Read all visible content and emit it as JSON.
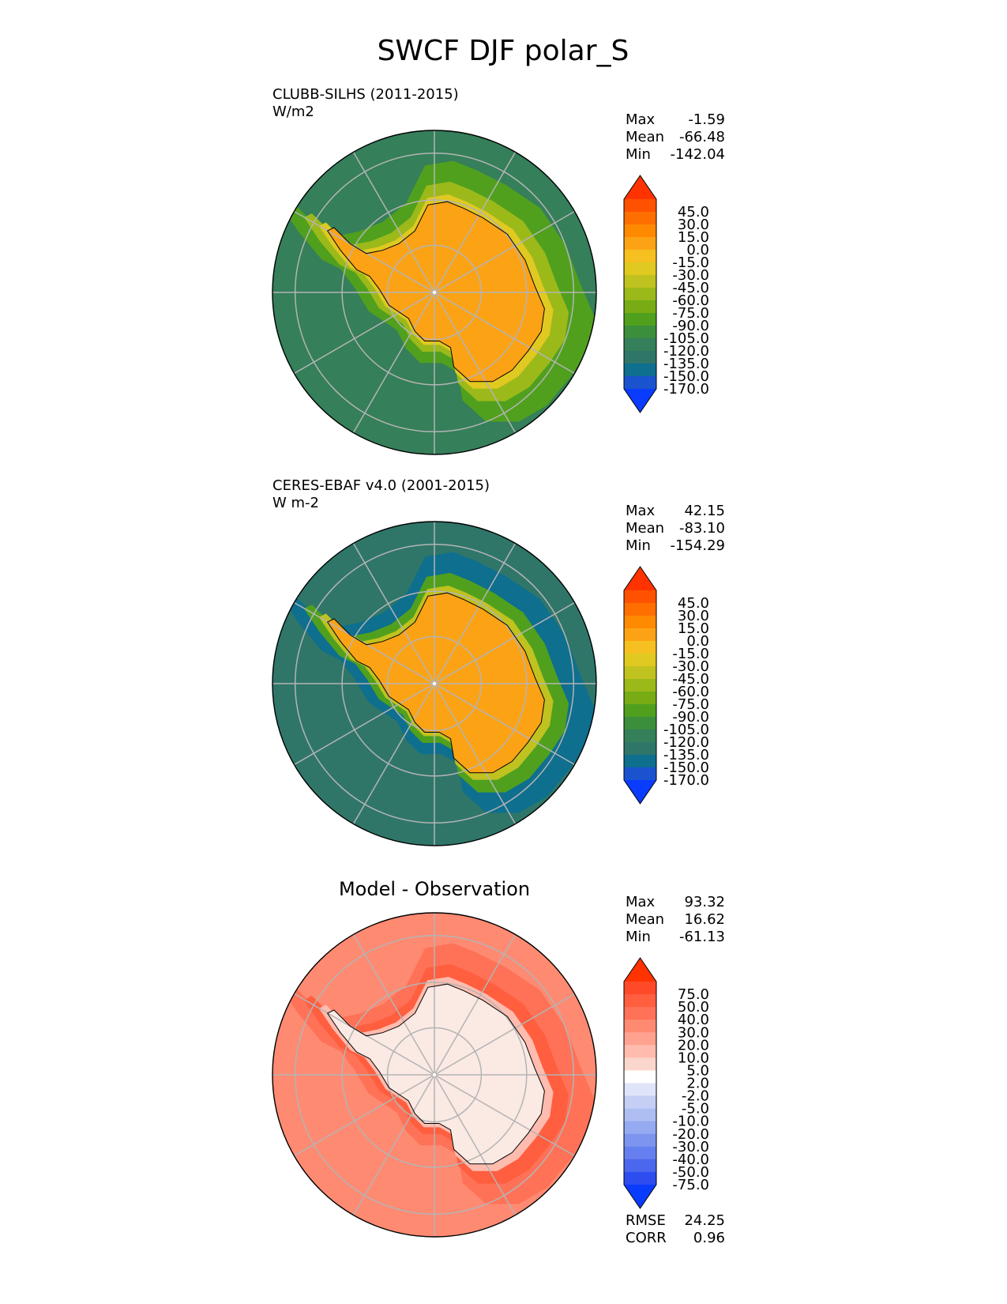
{
  "figure": {
    "title": "SWCF DJF polar_S"
  },
  "panels": [
    {
      "id": "model",
      "label_line1": "CLUBB-SILHS (2011-2015)",
      "label_line2": "W/m2",
      "center_title": "",
      "stats": [
        {
          "name": "Max",
          "value": "-1.59"
        },
        {
          "name": "Mean",
          "value": "-66.48"
        },
        {
          "name": "Min",
          "value": "-142.04"
        }
      ],
      "colorbar": {
        "ticks": [
          "45.0",
          "30.0",
          "15.0",
          "0.0",
          "-15.0",
          "-30.0",
          "-45.0",
          "-60.0",
          "-75.0",
          "-90.0",
          "-105.0",
          "-120.0",
          "-135.0",
          "-150.0",
          "-170.0"
        ],
        "colors": [
          "#ff3300",
          "#ff5200",
          "#ff6f00",
          "#ff8a00",
          "#fca315",
          "#f6c020",
          "#e0c921",
          "#c0c21f",
          "#9cb91a",
          "#77ac14",
          "#50a01e",
          "#3b8e3c",
          "#357f5a",
          "#2f7669",
          "#0e6f8f",
          "#1b53cf",
          "#0a3cff"
        ]
      },
      "field": {
        "ocean_far_color": "#357f5a",
        "ocean_mid_color": "#50a01e",
        "ocean_near_color": "#9cb91a",
        "coast_band_color": "#e0c921",
        "ice_color": "#fca315"
      }
    },
    {
      "id": "obs",
      "label_line1": "CERES-EBAF v4.0 (2001-2015)",
      "label_line2": "W m-2",
      "center_title": "",
      "stats": [
        {
          "name": "Max",
          "value": "42.15"
        },
        {
          "name": "Mean",
          "value": "-83.10"
        },
        {
          "name": "Min",
          "value": "-154.29"
        }
      ],
      "colorbar": {
        "ticks": [
          "45.0",
          "30.0",
          "15.0",
          "0.0",
          "-15.0",
          "-30.0",
          "-45.0",
          "-60.0",
          "-75.0",
          "-90.0",
          "-105.0",
          "-120.0",
          "-135.0",
          "-150.0",
          "-170.0"
        ],
        "colors": [
          "#ff3300",
          "#ff5200",
          "#ff6f00",
          "#ff8a00",
          "#fca315",
          "#f6c020",
          "#e0c921",
          "#c0c21f",
          "#9cb91a",
          "#77ac14",
          "#50a01e",
          "#3b8e3c",
          "#357f5a",
          "#2f7669",
          "#0e6f8f",
          "#1b53cf",
          "#0a3cff"
        ]
      },
      "field": {
        "ocean_far_color": "#2f7669",
        "ocean_mid_color": "#0e6f8f",
        "ocean_near_color": "#50a01e",
        "coast_band_color": "#c0c21f",
        "ice_color": "#fca315"
      }
    },
    {
      "id": "diff",
      "label_line1": "",
      "label_line2": "",
      "center_title": "Model - Observation",
      "stats": [
        {
          "name": "Max",
          "value": "93.32"
        },
        {
          "name": "Mean",
          "value": "16.62"
        },
        {
          "name": "Min",
          "value": "-61.13"
        }
      ],
      "colorbar": {
        "ticks": [
          "75.0",
          "50.0",
          "40.0",
          "30.0",
          "20.0",
          "10.0",
          "5.0",
          "2.0",
          "-2.0",
          "-5.0",
          "-10.0",
          "-20.0",
          "-30.0",
          "-40.0",
          "-50.0",
          "-75.0"
        ],
        "colors": [
          "#ff3300",
          "#ff4a2a",
          "#ff5e3f",
          "#ff7257",
          "#ff8a72",
          "#ffa290",
          "#ffbcae",
          "#fbd6cd",
          "#ffffff",
          "#dfe4fa",
          "#c5cff5",
          "#aebef3",
          "#95aaf1",
          "#7d95ef",
          "#6580ee",
          "#4a67ed",
          "#2d4df0",
          "#0a3cff"
        ]
      },
      "field": {
        "ocean_far_color": "#ff8a72",
        "ocean_mid_color": "#ff7257",
        "ocean_near_color": "#ff5e3f",
        "coast_band_color": "#ffbcae",
        "ice_color": "#fbe9e4"
      },
      "metrics": [
        {
          "name": "RMSE",
          "value": "24.25"
        },
        {
          "name": "CORR",
          "value": "0.96"
        }
      ]
    }
  ]
}
